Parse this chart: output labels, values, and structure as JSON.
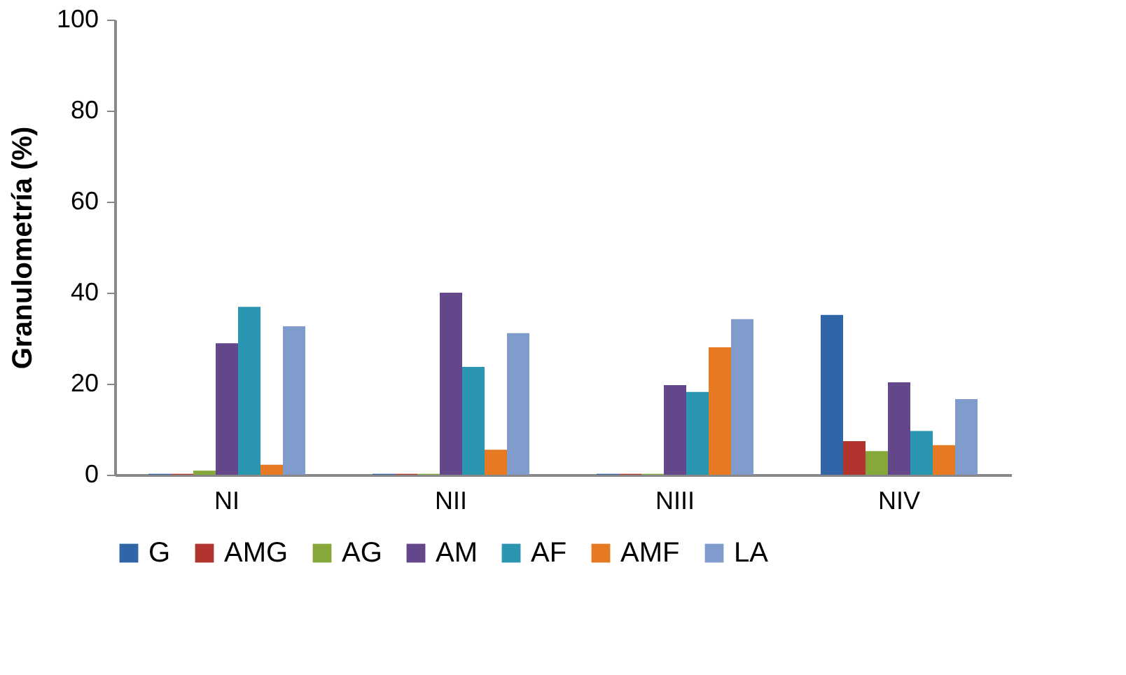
{
  "chart_data": {
    "type": "bar",
    "ylabel": "Granulometría (%)",
    "categories": [
      "NI",
      "NII",
      "NIII",
      "NIV"
    ],
    "ylim": [
      0,
      100
    ],
    "yticks": [
      0,
      20,
      40,
      60,
      80,
      100
    ],
    "grid": false,
    "legend": "bottom",
    "series": [
      {
        "name": "G",
        "color": "#3066a8",
        "values": [
          0.2,
          0.2,
          0.2,
          35.1
        ]
      },
      {
        "name": "AMG",
        "color": "#b2342f",
        "values": [
          0.2,
          0.2,
          0.2,
          7.4
        ]
      },
      {
        "name": "AG",
        "color": "#86a83a",
        "values": [
          0.9,
          0.2,
          0.2,
          5.2
        ]
      },
      {
        "name": "AM",
        "color": "#64478a",
        "values": [
          28.9,
          40.0,
          19.7,
          20.3
        ]
      },
      {
        "name": "AF",
        "color": "#2a95b0",
        "values": [
          36.9,
          23.7,
          18.2,
          9.6
        ]
      },
      {
        "name": "AMF",
        "color": "#e57a22",
        "values": [
          2.2,
          5.5,
          28.0,
          6.5
        ]
      },
      {
        "name": "LA",
        "color": "#7f9ccd",
        "values": [
          32.6,
          31.1,
          34.2,
          16.6
        ]
      }
    ]
  }
}
